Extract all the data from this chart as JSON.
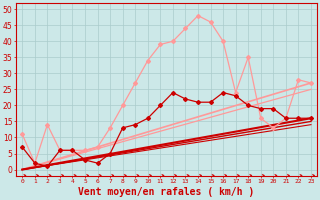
{
  "background_color": "#cce8e8",
  "grid_color": "#aacccc",
  "xlabel": "Vent moyen/en rafales ( km/h )",
  "xlabel_color": "#cc0000",
  "xlabel_fontsize": 7,
  "tick_color": "#cc0000",
  "xticks": [
    0,
    1,
    2,
    3,
    4,
    5,
    6,
    7,
    8,
    9,
    10,
    11,
    12,
    13,
    14,
    15,
    16,
    17,
    18,
    19,
    20,
    21,
    22,
    23
  ],
  "yticks": [
    0,
    5,
    10,
    15,
    20,
    25,
    30,
    35,
    40,
    45,
    50
  ],
  "ylim": [
    -2,
    52
  ],
  "xlim": [
    -0.5,
    23.5
  ],
  "series": [
    {
      "x": [
        0,
        1,
        2,
        3,
        4,
        5,
        6,
        7,
        8,
        9,
        10,
        11,
        12,
        13,
        14,
        15,
        16,
        17,
        18,
        19,
        20,
        21,
        22,
        23
      ],
      "y": [
        7,
        2,
        1,
        6,
        6,
        3,
        2,
        5,
        13,
        14,
        16,
        20,
        24,
        22,
        21,
        21,
        24,
        23,
        20,
        19,
        19,
        16,
        16,
        16
      ],
      "color": "#cc0000",
      "marker": "D",
      "markersize": 2,
      "linewidth": 0.9,
      "zorder": 5
    },
    {
      "x": [
        0,
        23
      ],
      "y": [
        0,
        16
      ],
      "color": "#cc0000",
      "marker": null,
      "markersize": 0,
      "linewidth": 1.5,
      "zorder": 3
    },
    {
      "x": [
        0,
        23
      ],
      "y": [
        0,
        15
      ],
      "color": "#cc0000",
      "marker": null,
      "markersize": 0,
      "linewidth": 1.0,
      "zorder": 3
    },
    {
      "x": [
        0,
        23
      ],
      "y": [
        0,
        14
      ],
      "color": "#cc0000",
      "marker": null,
      "markersize": 0,
      "linewidth": 0.8,
      "zorder": 3
    },
    {
      "x": [
        0,
        1,
        2,
        3,
        4,
        5,
        6,
        7,
        8,
        9,
        10,
        11,
        12,
        13,
        14,
        15,
        16,
        17,
        18,
        19,
        20,
        21,
        22,
        23
      ],
      "y": [
        11,
        2,
        14,
        6,
        6,
        6,
        7,
        13,
        20,
        27,
        34,
        39,
        40,
        44,
        48,
        46,
        40,
        24,
        35,
        16,
        13,
        16,
        28,
        27
      ],
      "color": "#ff9999",
      "marker": "D",
      "markersize": 2,
      "linewidth": 0.9,
      "zorder": 4
    },
    {
      "x": [
        0,
        23
      ],
      "y": [
        0,
        27
      ],
      "color": "#ff9999",
      "marker": null,
      "markersize": 0,
      "linewidth": 1.2,
      "zorder": 2
    },
    {
      "x": [
        0,
        23
      ],
      "y": [
        0,
        25
      ],
      "color": "#ff9999",
      "marker": null,
      "markersize": 0,
      "linewidth": 0.9,
      "zorder": 2
    }
  ],
  "arrow_color": "#cc0000"
}
